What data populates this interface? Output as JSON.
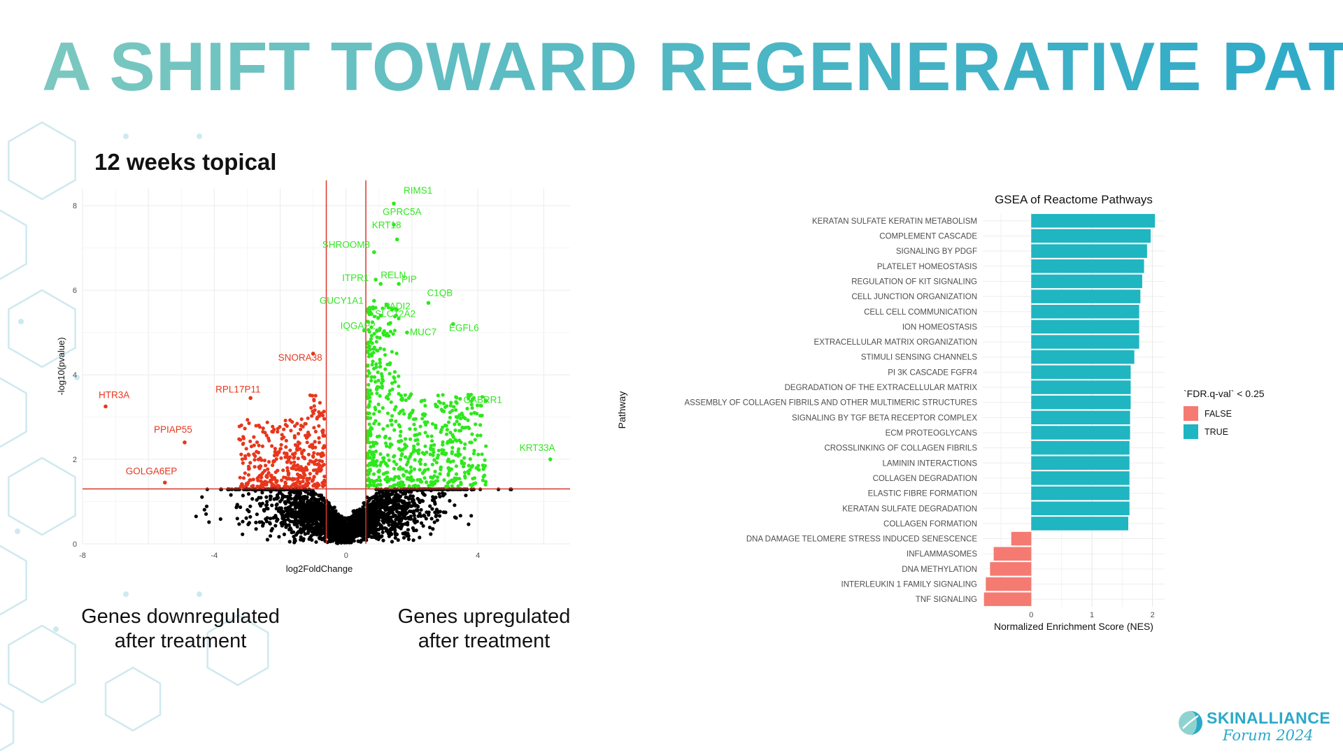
{
  "slide": {
    "title": "A SHIFT TOWARD REGENERATIVE PATH",
    "volcano_caption": "12 weeks topical",
    "callout_down": [
      "Genes downregulated",
      "after treatment"
    ],
    "callout_up": [
      "Genes upregulated",
      "after treatment"
    ]
  },
  "logo": {
    "name": "SKINALLIANCE",
    "subtitle": "Forum 2024",
    "color": "#2aa9c9"
  },
  "colors": {
    "title_start": "#7cc8c0",
    "title_end": "#2aa9c9",
    "hexagon": "#cfe9f0",
    "down": "#e8361c",
    "up": "#2ee81c",
    "ns": "#000000",
    "threshold": "#d9372a",
    "true": "#1fb5c1",
    "false": "#f57a72"
  },
  "chart_data": [
    {
      "type": "scatter",
      "title": "",
      "xlabel": "log2FoldChange",
      "ylabel": "-log10(pvalue)",
      "xlim": [
        -8,
        6.8
      ],
      "ylim": [
        0,
        8.4
      ],
      "xticks": [
        -8,
        -4,
        0,
        4
      ],
      "yticks": [
        0,
        2,
        4,
        6,
        8
      ],
      "grid": true,
      "thresholds": {
        "log2fc": [
          -0.6,
          0.6
        ],
        "neg_log10_p": 1.3
      },
      "labeled_genes": [
        {
          "name": "RIMS1",
          "x": 1.45,
          "y": 8.05,
          "group": "up"
        },
        {
          "name": "GPRC5A",
          "x": 1.45,
          "y": 7.55,
          "group": "up"
        },
        {
          "name": "KRT18",
          "x": 1.55,
          "y": 7.2,
          "group": "up"
        },
        {
          "name": "SHROOM3",
          "x": 0.85,
          "y": 6.9,
          "group": "up"
        },
        {
          "name": "RELN",
          "x": 1.05,
          "y": 6.15,
          "group": "up"
        },
        {
          "name": "ITPR1",
          "x": 0.9,
          "y": 6.25,
          "group": "up"
        },
        {
          "name": "PIP",
          "x": 1.6,
          "y": 6.15,
          "group": "up"
        },
        {
          "name": "C1QB",
          "x": 2.5,
          "y": 5.7,
          "group": "up"
        },
        {
          "name": "GUCY1A1",
          "x": 0.85,
          "y": 5.75,
          "group": "up"
        },
        {
          "name": "PADI2",
          "x": 1.4,
          "y": 5.55,
          "group": "up"
        },
        {
          "name": "SLC12A2",
          "x": 1.05,
          "y": 5.4,
          "group": "up"
        },
        {
          "name": "IQGAP2",
          "x": 0.55,
          "y": 5.05,
          "group": "up"
        },
        {
          "name": "MUC7",
          "x": 1.85,
          "y": 5.0,
          "group": "up"
        },
        {
          "name": "EGFL6",
          "x": 3.25,
          "y": 5.2,
          "group": "up"
        },
        {
          "name": "GABRR1",
          "x": 3.9,
          "y": 3.1,
          "group": "up"
        },
        {
          "name": "KRT33A",
          "x": 6.2,
          "y": 2.0,
          "group": "up"
        },
        {
          "name": "SNORA38",
          "x": -1.0,
          "y": 4.5,
          "group": "down"
        },
        {
          "name": "RPL17P11",
          "x": -2.9,
          "y": 3.45,
          "group": "down"
        },
        {
          "name": "HTR3A",
          "x": -7.3,
          "y": 3.25,
          "group": "down"
        },
        {
          "name": "PPIAP55",
          "x": -4.9,
          "y": 2.4,
          "group": "down"
        },
        {
          "name": "GOLGA6EP",
          "x": -5.5,
          "y": 1.45,
          "group": "down"
        }
      ]
    },
    {
      "type": "bar",
      "orientation": "horizontal",
      "title": "GSEA of Reactome Pathways",
      "xlabel": "Normalized Enrichment Score (NES)",
      "ylabel": "Pathway",
      "xlim": [
        -0.8,
        2.2
      ],
      "xticks": [
        0,
        1,
        2
      ],
      "grid": true,
      "legend": {
        "title": "`FDR.q-val` < 0.25",
        "entries": [
          "FALSE",
          "TRUE"
        ],
        "placement": "right"
      },
      "categories": [
        "KERATAN SULFATE KERATIN METABOLISM",
        "COMPLEMENT CASCADE",
        "SIGNALING BY PDGF",
        "PLATELET HOMEOSTASIS",
        "REGULATION OF KIT SIGNALING",
        "CELL JUNCTION ORGANIZATION",
        "CELL CELL COMMUNICATION",
        "ION HOMEOSTASIS",
        "EXTRACELLULAR MATRIX ORGANIZATION",
        "STIMULI SENSING CHANNELS",
        "PI 3K CASCADE FGFR4",
        "DEGRADATION OF THE EXTRACELLULAR MATRIX",
        "ASSEMBLY OF COLLAGEN FIBRILS AND OTHER MULTIMERIC STRUCTURES",
        "SIGNALING BY TGF BETA RECEPTOR COMPLEX",
        "ECM PROTEOGLYCANS",
        "CROSSLINKING OF COLLAGEN FIBRILS",
        "LAMININ INTERACTIONS",
        "COLLAGEN DEGRADATION",
        "ELASTIC FIBRE FORMATION",
        "KERATAN SULFATE DEGRADATION",
        "COLLAGEN FORMATION",
        "DNA DAMAGE TELOMERE STRESS INDUCED SENESCENCE",
        "INFLAMMASOMES",
        "DNA METHYLATION",
        "INTERLEUKIN 1 FAMILY SIGNALING",
        "TNF SIGNALING"
      ],
      "values": [
        2.04,
        1.97,
        1.91,
        1.86,
        1.83,
        1.8,
        1.78,
        1.78,
        1.78,
        1.7,
        1.64,
        1.64,
        1.64,
        1.63,
        1.63,
        1.62,
        1.62,
        1.62,
        1.62,
        1.62,
        1.6,
        -0.33,
        -0.62,
        -0.68,
        -0.75,
        -0.78
      ],
      "significant": [
        true,
        true,
        true,
        true,
        true,
        true,
        true,
        true,
        true,
        true,
        true,
        true,
        true,
        true,
        true,
        true,
        true,
        true,
        true,
        true,
        true,
        false,
        false,
        false,
        false,
        false
      ]
    }
  ]
}
